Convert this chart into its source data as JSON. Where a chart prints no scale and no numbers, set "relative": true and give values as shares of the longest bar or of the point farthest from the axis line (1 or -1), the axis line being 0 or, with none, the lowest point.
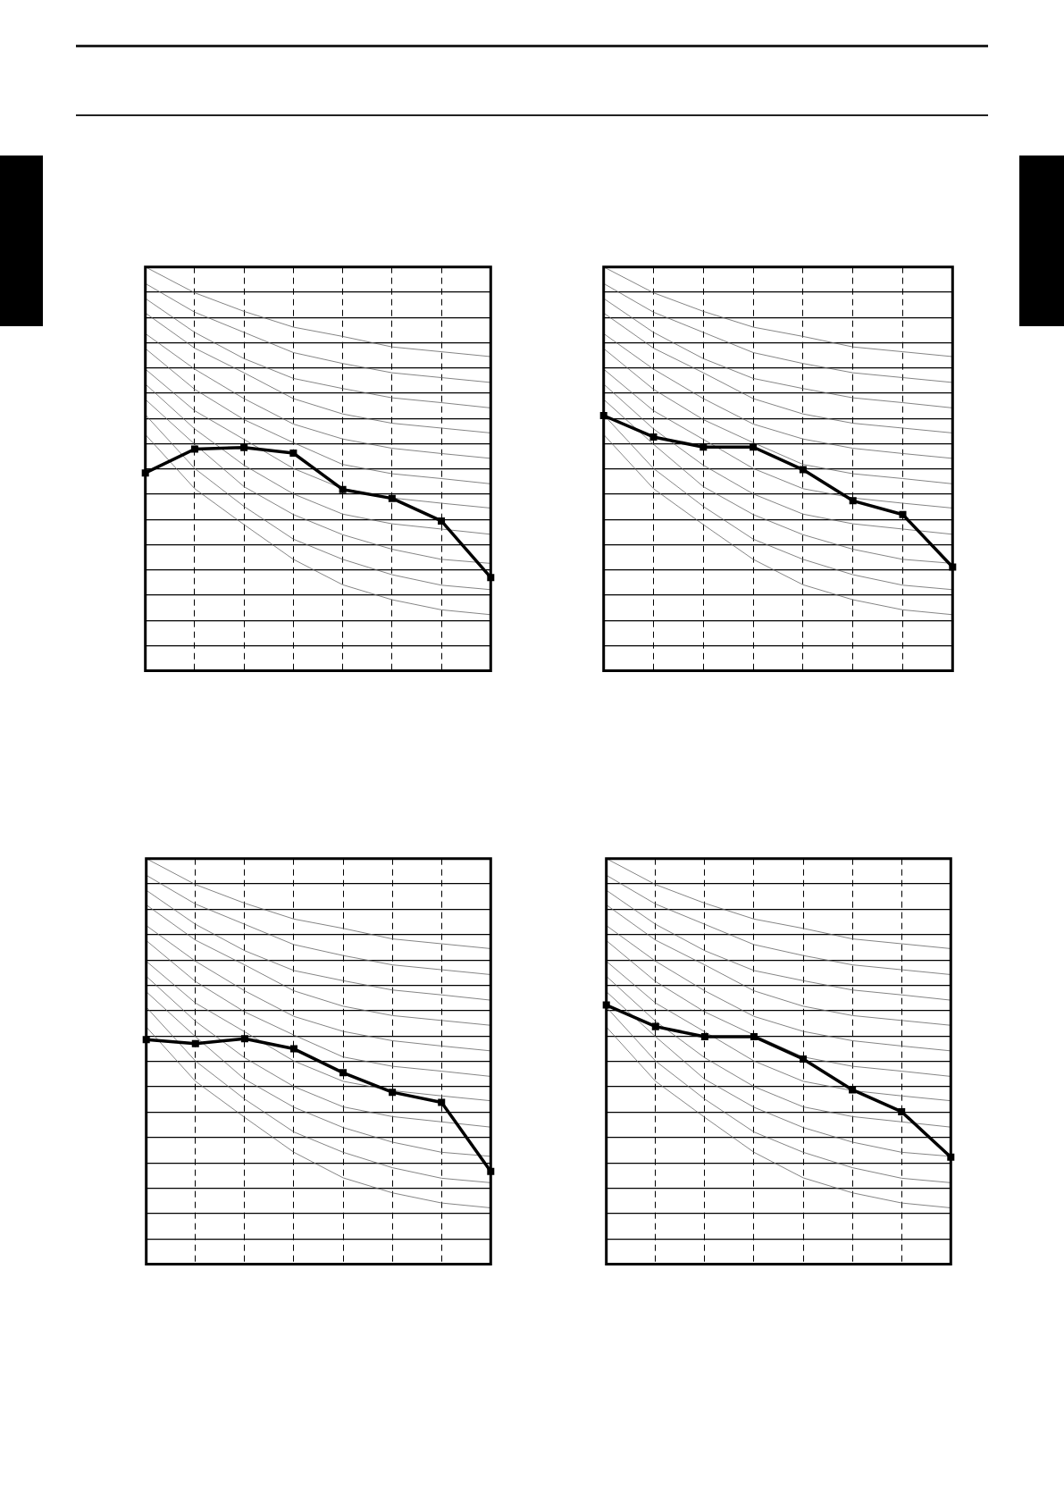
{
  "chart_data": [
    {
      "type": "line",
      "relative": true,
      "grid": true,
      "legend": false,
      "categories": [
        null,
        null,
        null,
        null,
        null,
        null,
        null,
        null
      ],
      "series": [
        {
          "color": "#666666",
          "marker": "none",
          "values": [
            1,
            0.936,
            0.89,
            0.851,
            0.828,
            0.802,
            0.79,
            0.778
          ]
        },
        {
          "color": "#666666",
          "marker": "none",
          "values": [
            0.959,
            0.888,
            0.838,
            0.788,
            0.761,
            0.738,
            0.726,
            0.714
          ]
        },
        {
          "color": "#666666",
          "marker": "none",
          "values": [
            0.922,
            0.838,
            0.773,
            0.724,
            0.699,
            0.676,
            0.664,
            0.651
          ]
        },
        {
          "color": "#666666",
          "marker": "none",
          "values": [
            0.886,
            0.799,
            0.738,
            0.674,
            0.636,
            0.613,
            0.601,
            0.589
          ]
        },
        {
          "color": "#666666",
          "marker": "none",
          "values": [
            0.835,
            0.747,
            0.674,
            0.611,
            0.574,
            0.551,
            0.538,
            0.526
          ]
        },
        {
          "color": "#666666",
          "marker": "none",
          "values": [
            0.798,
            0.697,
            0.622,
            0.565,
            0.511,
            0.488,
            0.476,
            0.463
          ]
        },
        {
          "color": "#666666",
          "marker": "none",
          "values": [
            0.747,
            0.644,
            0.573,
            0.501,
            0.451,
            0.428,
            0.415,
            0.403
          ]
        },
        {
          "color": "#666666",
          "marker": "none",
          "values": [
            0.71,
            0.599,
            0.509,
            0.438,
            0.388,
            0.364,
            0.351,
            0.338
          ]
        },
        {
          "color": "#666666",
          "marker": "none",
          "values": [
            0.672,
            0.561,
            0.456,
            0.387,
            0.337,
            0.301,
            0.276,
            0.266
          ]
        },
        {
          "color": "#666666",
          "marker": "none",
          "values": [
            0.634,
            0.501,
            0.407,
            0.326,
            0.276,
            0.238,
            0.212,
            0.201
          ]
        },
        {
          "color": "#666666",
          "marker": "none",
          "values": [
            0.585,
            0.451,
            0.362,
            0.276,
            0.213,
            0.176,
            0.151,
            0.139
          ]
        },
        {
          "color": "#000000",
          "marker": "square",
          "values": [
            0.49,
            0.549,
            0.553,
            0.539,
            0.449,
            0.427,
            0.371,
            0.231
          ]
        }
      ]
    },
    {
      "type": "line",
      "relative": true,
      "grid": true,
      "legend": false,
      "categories": [
        null,
        null,
        null,
        null,
        null,
        null,
        null,
        null
      ],
      "series": [
        {
          "color": "#666666",
          "marker": "none",
          "values": [
            1,
            0.936,
            0.89,
            0.851,
            0.828,
            0.802,
            0.79,
            0.778
          ]
        },
        {
          "color": "#666666",
          "marker": "none",
          "values": [
            0.959,
            0.888,
            0.838,
            0.788,
            0.761,
            0.738,
            0.726,
            0.714
          ]
        },
        {
          "color": "#666666",
          "marker": "none",
          "values": [
            0.922,
            0.838,
            0.773,
            0.724,
            0.699,
            0.676,
            0.664,
            0.651
          ]
        },
        {
          "color": "#666666",
          "marker": "none",
          "values": [
            0.886,
            0.799,
            0.738,
            0.674,
            0.636,
            0.613,
            0.601,
            0.589
          ]
        },
        {
          "color": "#666666",
          "marker": "none",
          "values": [
            0.835,
            0.747,
            0.674,
            0.611,
            0.574,
            0.551,
            0.538,
            0.526
          ]
        },
        {
          "color": "#666666",
          "marker": "none",
          "values": [
            0.798,
            0.697,
            0.622,
            0.565,
            0.511,
            0.488,
            0.476,
            0.463
          ]
        },
        {
          "color": "#666666",
          "marker": "none",
          "values": [
            0.747,
            0.644,
            0.573,
            0.501,
            0.451,
            0.428,
            0.415,
            0.403
          ]
        },
        {
          "color": "#666666",
          "marker": "none",
          "values": [
            0.71,
            0.599,
            0.509,
            0.438,
            0.388,
            0.364,
            0.351,
            0.338
          ]
        },
        {
          "color": "#666666",
          "marker": "none",
          "values": [
            0.672,
            0.561,
            0.456,
            0.387,
            0.337,
            0.301,
            0.276,
            0.266
          ]
        },
        {
          "color": "#666666",
          "marker": "none",
          "values": [
            0.634,
            0.501,
            0.407,
            0.326,
            0.276,
            0.238,
            0.212,
            0.201
          ]
        },
        {
          "color": "#666666",
          "marker": "none",
          "values": [
            0.585,
            0.451,
            0.362,
            0.276,
            0.213,
            0.176,
            0.151,
            0.139
          ]
        },
        {
          "color": "#000000",
          "marker": "square",
          "values": [
            0.632,
            0.579,
            0.554,
            0.554,
            0.498,
            0.421,
            0.387,
            0.257
          ]
        }
      ]
    },
    {
      "type": "line",
      "relative": true,
      "grid": true,
      "legend": false,
      "categories": [
        null,
        null,
        null,
        null,
        null,
        null,
        null,
        null
      ],
      "series": [
        {
          "color": "#666666",
          "marker": "none",
          "values": [
            1,
            0.936,
            0.89,
            0.851,
            0.828,
            0.802,
            0.79,
            0.778
          ]
        },
        {
          "color": "#666666",
          "marker": "none",
          "values": [
            0.959,
            0.888,
            0.838,
            0.788,
            0.761,
            0.738,
            0.726,
            0.714
          ]
        },
        {
          "color": "#666666",
          "marker": "none",
          "values": [
            0.922,
            0.838,
            0.773,
            0.724,
            0.699,
            0.676,
            0.664,
            0.651
          ]
        },
        {
          "color": "#666666",
          "marker": "none",
          "values": [
            0.886,
            0.799,
            0.738,
            0.674,
            0.636,
            0.613,
            0.601,
            0.589
          ]
        },
        {
          "color": "#666666",
          "marker": "none",
          "values": [
            0.835,
            0.747,
            0.674,
            0.611,
            0.574,
            0.551,
            0.538,
            0.526
          ]
        },
        {
          "color": "#666666",
          "marker": "none",
          "values": [
            0.798,
            0.697,
            0.622,
            0.565,
            0.511,
            0.488,
            0.476,
            0.463
          ]
        },
        {
          "color": "#666666",
          "marker": "none",
          "values": [
            0.747,
            0.644,
            0.573,
            0.501,
            0.451,
            0.428,
            0.415,
            0.403
          ]
        },
        {
          "color": "#666666",
          "marker": "none",
          "values": [
            0.71,
            0.599,
            0.509,
            0.438,
            0.388,
            0.364,
            0.351,
            0.338
          ]
        },
        {
          "color": "#666666",
          "marker": "none",
          "values": [
            0.672,
            0.561,
            0.456,
            0.387,
            0.337,
            0.301,
            0.276,
            0.266
          ]
        },
        {
          "color": "#666666",
          "marker": "none",
          "values": [
            0.634,
            0.501,
            0.407,
            0.326,
            0.276,
            0.238,
            0.212,
            0.201
          ]
        },
        {
          "color": "#666666",
          "marker": "none",
          "values": [
            0.585,
            0.451,
            0.362,
            0.276,
            0.213,
            0.176,
            0.151,
            0.139
          ]
        },
        {
          "color": "#000000",
          "marker": "square",
          "values": [
            0.554,
            0.544,
            0.556,
            0.531,
            0.472,
            0.424,
            0.399,
            0.229
          ]
        }
      ]
    },
    {
      "type": "line",
      "relative": true,
      "grid": true,
      "legend": false,
      "categories": [
        null,
        null,
        null,
        null,
        null,
        null,
        null,
        null
      ],
      "series": [
        {
          "color": "#666666",
          "marker": "none",
          "values": [
            1,
            0.936,
            0.89,
            0.851,
            0.828,
            0.802,
            0.79,
            0.778
          ]
        },
        {
          "color": "#666666",
          "marker": "none",
          "values": [
            0.959,
            0.888,
            0.838,
            0.788,
            0.761,
            0.738,
            0.726,
            0.714
          ]
        },
        {
          "color": "#666666",
          "marker": "none",
          "values": [
            0.922,
            0.838,
            0.773,
            0.724,
            0.699,
            0.676,
            0.664,
            0.651
          ]
        },
        {
          "color": "#666666",
          "marker": "none",
          "values": [
            0.886,
            0.799,
            0.738,
            0.674,
            0.636,
            0.613,
            0.601,
            0.589
          ]
        },
        {
          "color": "#666666",
          "marker": "none",
          "values": [
            0.835,
            0.747,
            0.674,
            0.611,
            0.574,
            0.551,
            0.538,
            0.526
          ]
        },
        {
          "color": "#666666",
          "marker": "none",
          "values": [
            0.798,
            0.697,
            0.622,
            0.565,
            0.511,
            0.488,
            0.476,
            0.463
          ]
        },
        {
          "color": "#666666",
          "marker": "none",
          "values": [
            0.747,
            0.644,
            0.573,
            0.501,
            0.451,
            0.428,
            0.415,
            0.403
          ]
        },
        {
          "color": "#666666",
          "marker": "none",
          "values": [
            0.71,
            0.599,
            0.509,
            0.438,
            0.388,
            0.364,
            0.351,
            0.338
          ]
        },
        {
          "color": "#666666",
          "marker": "none",
          "values": [
            0.672,
            0.561,
            0.456,
            0.387,
            0.337,
            0.301,
            0.276,
            0.266
          ]
        },
        {
          "color": "#666666",
          "marker": "none",
          "values": [
            0.634,
            0.501,
            0.407,
            0.326,
            0.276,
            0.238,
            0.212,
            0.201
          ]
        },
        {
          "color": "#666666",
          "marker": "none",
          "values": [
            0.585,
            0.451,
            0.362,
            0.276,
            0.213,
            0.176,
            0.151,
            0.139
          ]
        },
        {
          "color": "#000000",
          "marker": "square",
          "values": [
            0.639,
            0.586,
            0.561,
            0.561,
            0.506,
            0.43,
            0.376,
            0.264
          ]
        }
      ]
    }
  ]
}
